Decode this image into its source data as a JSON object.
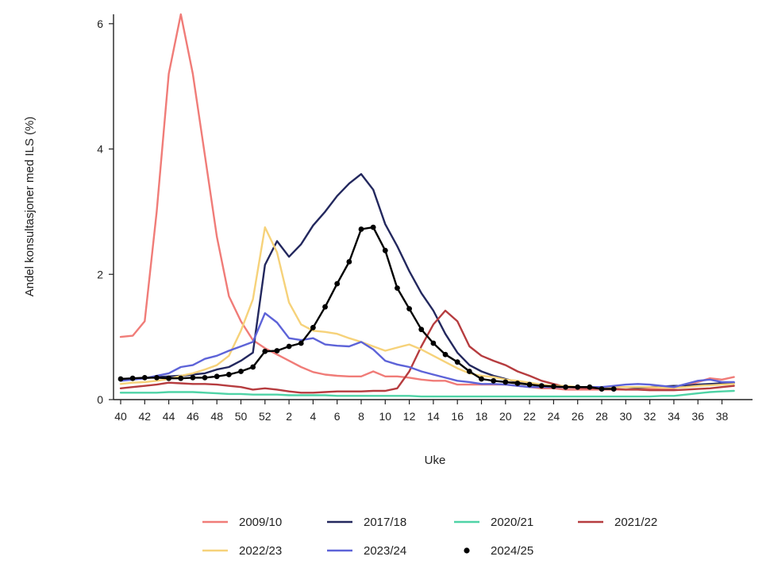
{
  "chart_data": {
    "type": "line",
    "title": "",
    "xlabel": "Uke",
    "ylabel": "Andel konsultasjoner med ILS (%)",
    "ylim": [
      0,
      6.15
    ],
    "yticks": [
      0,
      2,
      4,
      6
    ],
    "grid": false,
    "legend_position": "bottom",
    "weeks": [
      40,
      41,
      42,
      43,
      44,
      45,
      46,
      47,
      48,
      49,
      50,
      51,
      52,
      1,
      2,
      3,
      4,
      5,
      6,
      7,
      8,
      9,
      10,
      11,
      12,
      13,
      14,
      15,
      16,
      17,
      18,
      19,
      20,
      21,
      22,
      23,
      24,
      25,
      26,
      27,
      28,
      29,
      30,
      31,
      32,
      33,
      34,
      35,
      36,
      37,
      38,
      39
    ],
    "xtick_labels": [
      "40",
      "42",
      "44",
      "46",
      "48",
      "50",
      "52",
      "2",
      "4",
      "6",
      "8",
      "10",
      "12",
      "14",
      "16",
      "18",
      "20",
      "22",
      "24",
      "26",
      "28",
      "30",
      "32",
      "34",
      "36",
      "38"
    ],
    "xtick_positions": [
      0,
      2,
      4,
      6,
      8,
      10,
      12,
      14,
      16,
      18,
      20,
      22,
      24,
      26,
      28,
      30,
      32,
      34,
      36,
      38,
      40,
      42,
      44,
      46,
      48,
      50
    ],
    "series": [
      {
        "name": "2009/10",
        "color": "#f07c78",
        "marker": "none",
        "values": [
          1.0,
          1.02,
          1.25,
          3.0,
          5.2,
          6.15,
          5.2,
          3.9,
          2.6,
          1.65,
          1.25,
          0.95,
          0.82,
          0.72,
          0.62,
          0.52,
          0.44,
          0.4,
          0.38,
          0.37,
          0.37,
          0.45,
          0.37,
          0.37,
          0.35,
          0.32,
          0.3,
          0.3,
          0.24,
          0.24,
          0.24,
          0.24,
          0.24,
          0.22,
          0.2,
          0.18,
          0.18,
          0.16,
          0.16,
          0.16,
          0.16,
          0.16,
          0.16,
          0.17,
          0.17,
          0.17,
          0.18,
          0.22,
          0.28,
          0.34,
          0.32,
          0.36
        ]
      },
      {
        "name": "2017/18",
        "color": "#23285e",
        "marker": "none",
        "values": [
          0.33,
          0.33,
          0.34,
          0.36,
          0.37,
          0.38,
          0.4,
          0.42,
          0.48,
          0.52,
          0.62,
          0.75,
          2.15,
          2.53,
          2.28,
          2.48,
          2.78,
          3.0,
          3.25,
          3.45,
          3.6,
          3.35,
          2.8,
          2.45,
          2.05,
          1.7,
          1.42,
          1.05,
          0.75,
          0.55,
          0.45,
          0.38,
          0.33,
          0.28,
          0.25,
          0.22,
          0.2,
          0.2,
          0.2,
          0.2,
          0.2,
          0.2,
          0.2,
          0.19,
          0.2,
          0.21,
          0.22,
          0.22,
          0.24,
          0.25,
          0.26,
          0.27
        ]
      },
      {
        "name": "2020/21",
        "color": "#4fd3a6",
        "marker": "none",
        "values": [
          0.11,
          0.11,
          0.11,
          0.11,
          0.12,
          0.12,
          0.12,
          0.11,
          0.1,
          0.09,
          0.09,
          0.08,
          0.08,
          0.08,
          0.07,
          0.07,
          0.07,
          0.07,
          0.06,
          0.06,
          0.06,
          0.06,
          0.06,
          0.06,
          0.06,
          0.05,
          0.05,
          0.05,
          0.05,
          0.05,
          0.05,
          0.05,
          0.05,
          0.05,
          0.05,
          0.05,
          0.05,
          0.05,
          0.05,
          0.05,
          0.05,
          0.05,
          0.05,
          0.05,
          0.05,
          0.06,
          0.06,
          0.08,
          0.1,
          0.12,
          0.13,
          0.14
        ]
      },
      {
        "name": "2021/22",
        "color": "#b63c3f",
        "marker": "none",
        "values": [
          0.18,
          0.2,
          0.22,
          0.24,
          0.27,
          0.26,
          0.25,
          0.25,
          0.24,
          0.22,
          0.2,
          0.16,
          0.18,
          0.16,
          0.13,
          0.11,
          0.11,
          0.12,
          0.13,
          0.13,
          0.13,
          0.14,
          0.14,
          0.18,
          0.45,
          0.85,
          1.2,
          1.42,
          1.25,
          0.85,
          0.7,
          0.62,
          0.55,
          0.45,
          0.38,
          0.3,
          0.25,
          0.2,
          0.19,
          0.18,
          0.18,
          0.17,
          0.16,
          0.16,
          0.15,
          0.15,
          0.15,
          0.16,
          0.17,
          0.18,
          0.2,
          0.22
        ]
      },
      {
        "name": "2022/23",
        "color": "#f6d27a",
        "marker": "none",
        "values": [
          0.25,
          0.27,
          0.28,
          0.3,
          0.33,
          0.38,
          0.42,
          0.48,
          0.55,
          0.7,
          1.1,
          1.6,
          2.75,
          2.35,
          1.55,
          1.2,
          1.1,
          1.08,
          1.05,
          0.98,
          0.92,
          0.85,
          0.78,
          0.83,
          0.88,
          0.8,
          0.7,
          0.6,
          0.5,
          0.42,
          0.38,
          0.36,
          0.32,
          0.3,
          0.27,
          0.24,
          0.22,
          0.22,
          0.2,
          0.2,
          0.2,
          0.2,
          0.2,
          0.2,
          0.2,
          0.19,
          0.19,
          0.2,
          0.22,
          0.23,
          0.24,
          0.25
        ]
      },
      {
        "name": "2023/24",
        "color": "#5d63d8",
        "marker": "none",
        "values": [
          0.3,
          0.32,
          0.34,
          0.38,
          0.42,
          0.52,
          0.55,
          0.65,
          0.7,
          0.78,
          0.85,
          0.92,
          1.38,
          1.23,
          0.98,
          0.95,
          0.98,
          0.88,
          0.86,
          0.85,
          0.92,
          0.8,
          0.62,
          0.56,
          0.52,
          0.45,
          0.4,
          0.35,
          0.3,
          0.28,
          0.25,
          0.25,
          0.24,
          0.22,
          0.2,
          0.2,
          0.2,
          0.2,
          0.2,
          0.2,
          0.2,
          0.22,
          0.24,
          0.25,
          0.24,
          0.22,
          0.2,
          0.25,
          0.3,
          0.32,
          0.28,
          0.28
        ]
      },
      {
        "name": "2024/25",
        "color": "#000000",
        "marker": "dot",
        "values": [
          0.33,
          0.34,
          0.35,
          0.35,
          0.34,
          0.34,
          0.35,
          0.35,
          0.37,
          0.4,
          0.45,
          0.52,
          0.77,
          0.78,
          0.85,
          0.9,
          1.15,
          1.48,
          1.85,
          2.2,
          2.72,
          2.75,
          2.38,
          1.78,
          1.45,
          1.12,
          0.9,
          0.72,
          0.6,
          0.45,
          0.33,
          0.3,
          0.28,
          0.26,
          0.24,
          0.22,
          0.21,
          0.2,
          0.2,
          0.2,
          0.17,
          0.17,
          null,
          null,
          null,
          null,
          null,
          null,
          null,
          null,
          null,
          null
        ]
      }
    ]
  }
}
